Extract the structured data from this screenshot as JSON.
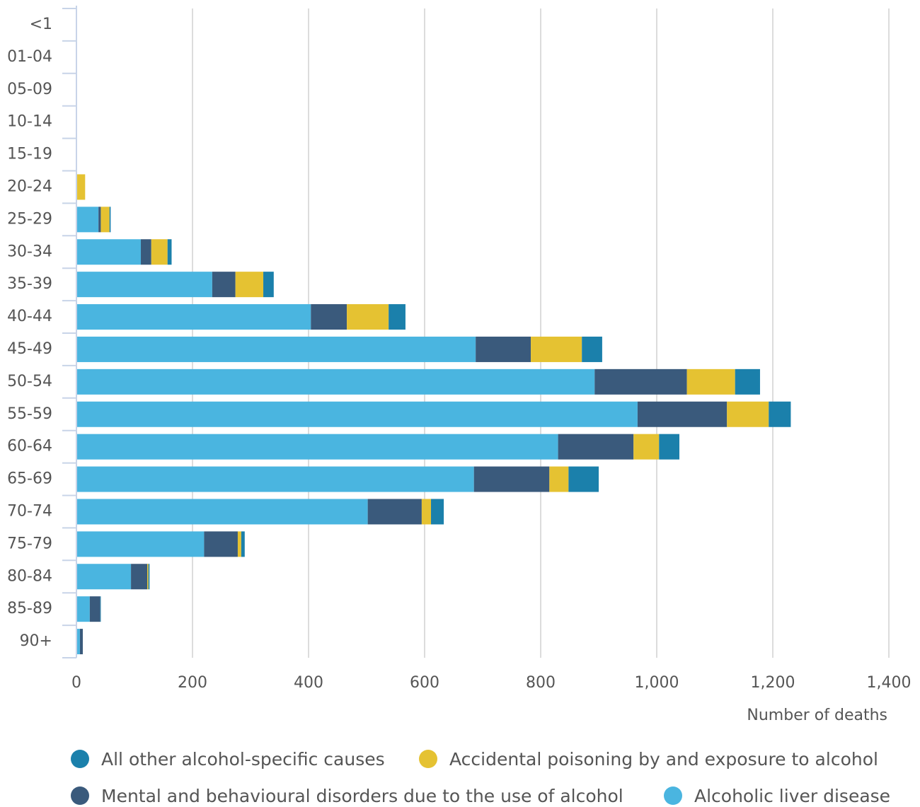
{
  "chart_data": {
    "type": "stacked_barh",
    "x_label": "Number of deaths",
    "categories": [
      "<1",
      "01-04",
      "05-09",
      "10-14",
      "15-19",
      "20-24",
      "25-29",
      "30-34",
      "35-39",
      "40-44",
      "45-49",
      "50-54",
      "55-59",
      "60-64",
      "65-69",
      "70-74",
      "75-79",
      "80-84",
      "85-89",
      "90+"
    ],
    "series": [
      {
        "name": "Alcoholic liver disease",
        "color": "#4ab5e0",
        "values": [
          0,
          0,
          0,
          0,
          0,
          0,
          38,
          111,
          234,
          404,
          688,
          893,
          967,
          830,
          685,
          502,
          220,
          94,
          23,
          6
        ]
      },
      {
        "name": "Mental and behavioural disorders due to the use of alcohol",
        "color": "#3a5a7c",
        "values": [
          0,
          0,
          0,
          0,
          0,
          0,
          4,
          18,
          40,
          62,
          95,
          159,
          154,
          130,
          130,
          93,
          58,
          28,
          18,
          5
        ]
      },
      {
        "name": "Accidental poisoning by and exposure to alcohol",
        "color": "#e5c232",
        "values": [
          0,
          0,
          0,
          0,
          0,
          15,
          15,
          28,
          48,
          72,
          88,
          83,
          72,
          44,
          33,
          16,
          6,
          2,
          0,
          0
        ]
      },
      {
        "name": "All other alcohol-specific causes",
        "color": "#1b80ab",
        "values": [
          0,
          0,
          0,
          0,
          0,
          0,
          2,
          7,
          18,
          29,
          35,
          43,
          38,
          35,
          52,
          22,
          6,
          2,
          1,
          0
        ]
      }
    ],
    "legend_order": [
      3,
      2,
      1,
      0
    ],
    "xlim": [
      0,
      1400
    ],
    "xticks": [
      0,
      200,
      400,
      600,
      800,
      {
        "value": 1000,
        "label": "1,000"
      },
      {
        "value": 1200,
        "label": "1,200"
      },
      {
        "value": 1400,
        "label": "1,400"
      }
    ],
    "grid": true
  }
}
